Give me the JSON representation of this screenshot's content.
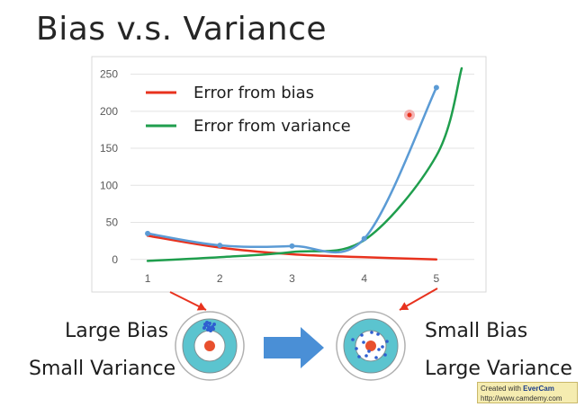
{
  "title": "Bias v.s. Variance",
  "chart_data": {
    "type": "line",
    "x": [
      1,
      2,
      3,
      4,
      5
    ],
    "xlim": [
      0.7,
      5.5
    ],
    "ylim": [
      -10,
      258
    ],
    "yticks": [
      0,
      50,
      100,
      150,
      200,
      250
    ],
    "xticks": [
      1,
      2,
      3,
      4,
      5
    ],
    "grid": "horizontal",
    "legend_position": "top-left",
    "series": [
      {
        "name": "Error from bias",
        "color": "#e8321e",
        "x": [
          1,
          2,
          3,
          4,
          5
        ],
        "values": [
          32,
          16,
          7,
          3,
          0
        ]
      },
      {
        "name": "Error from variance",
        "color": "#1f9e4d",
        "x": [
          1,
          2,
          3,
          4,
          5,
          5.35
        ],
        "values": [
          -2,
          3,
          10,
          26,
          140,
          258
        ]
      },
      {
        "name": "",
        "color": "#5b9bd5",
        "markers": true,
        "x": [
          1,
          2,
          3,
          4,
          5
        ],
        "values": [
          35,
          19,
          18,
          28,
          232
        ]
      }
    ]
  },
  "diagram": {
    "left_label_1": "Large Bias",
    "left_label_2": "Small Variance",
    "right_label_1": "Small Bias",
    "right_label_2": "Large Variance",
    "arrow_color": "#e8321e",
    "big_arrow_color": "#4a8fd6",
    "ring_color": "#5bc4cf",
    "center_color": "#e8502e",
    "dot_color": "#2f5fd0"
  },
  "watermark": {
    "line1_prefix": "Created with ",
    "line1_brand": "EverCam",
    "line2": "http://www.camdemy.com"
  }
}
